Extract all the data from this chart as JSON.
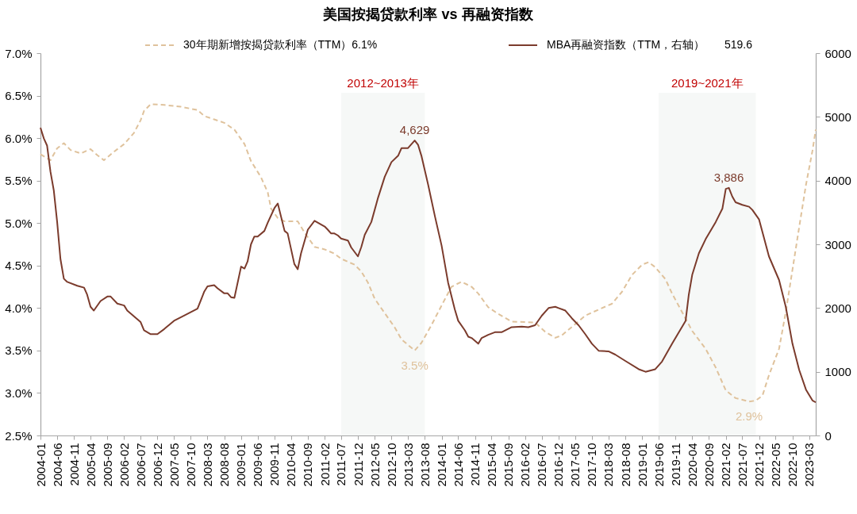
{
  "chart_data": {
    "type": "line",
    "title": "美国按揭贷款利率 vs 再融资指数",
    "xlim": [
      "2004-01",
      "2023-05"
    ],
    "xticks": [
      "2004-01",
      "2004-06",
      "2004-11",
      "2005-04",
      "2005-09",
      "2006-02",
      "2006-07",
      "2006-12",
      "2007-05",
      "2007-10",
      "2008-03",
      "2008-08",
      "2009-01",
      "2009-06",
      "2009-11",
      "2010-04",
      "2010-09",
      "2011-02",
      "2011-07",
      "2011-12",
      "2012-05",
      "2012-10",
      "2013-03",
      "2013-08",
      "2014-01",
      "2014-06",
      "2014-11",
      "2015-04",
      "2015-09",
      "2016-02",
      "2016-07",
      "2016-12",
      "2017-05",
      "2017-10",
      "2018-03",
      "2018-08",
      "2019-01",
      "2019-06",
      "2019-11",
      "2020-04",
      "2020-09",
      "2021-02",
      "2021-07",
      "2021-12",
      "2022-05",
      "2022-10",
      "2023-03"
    ],
    "ylim": [
      2.5,
      7.0
    ],
    "yticks": [
      {
        "value": 7.0,
        "label": "7.0%"
      },
      {
        "value": 6.5,
        "label": "6.5%"
      },
      {
        "value": 6.0,
        "label": "6.0%"
      },
      {
        "value": 5.5,
        "label": "5.5%"
      },
      {
        "value": 5.0,
        "label": "5.0%"
      },
      {
        "value": 4.5,
        "label": "4.5%"
      },
      {
        "value": 4.0,
        "label": "4.0%"
      },
      {
        "value": 3.5,
        "label": "3.5%"
      },
      {
        "value": 3.0,
        "label": "3.0%"
      },
      {
        "value": 2.5,
        "label": "2.5%"
      }
    ],
    "y2lim": [
      0,
      6000
    ],
    "y2ticks": [
      0,
      1000,
      2000,
      3000,
      4000,
      5000,
      6000
    ],
    "legend": "top",
    "bands": [
      {
        "axis": "x",
        "from": "2011-07",
        "to": "2013-08",
        "label": "2012~2013年",
        "color": "#f6f8f7"
      },
      {
        "axis": "x",
        "from": "2019-06",
        "to": "2021-11",
        "label": "2019~2021年",
        "color": "#f6f8f7"
      }
    ],
    "annotations": [
      "519.6"
    ],
    "series": [
      {
        "name": "30年期新增按揭贷款利率（TTM）6.1%",
        "color": "#dfc29c",
        "line_style": "dashed",
        "axis": "y",
        "x": [
          "2004-01",
          "2004-04",
          "2004-06",
          "2004-08",
          "2004-10",
          "2005-01",
          "2005-04",
          "2005-06",
          "2005-08",
          "2005-11",
          "2006-02",
          "2006-05",
          "2006-07",
          "2006-08",
          "2006-10",
          "2007-02",
          "2007-07",
          "2007-12",
          "2008-02",
          "2008-05",
          "2008-08",
          "2008-11",
          "2009-02",
          "2009-04",
          "2009-07",
          "2009-09",
          "2009-10",
          "2009-12",
          "2010-02",
          "2010-06",
          "2010-08",
          "2010-11",
          "2011-02",
          "2011-05",
          "2011-07",
          "2011-11",
          "2012-01",
          "2012-03",
          "2012-05",
          "2012-08",
          "2012-11",
          "2013-01",
          "2013-05",
          "2013-07",
          "2013-10",
          "2014-01",
          "2014-04",
          "2014-07",
          "2014-10",
          "2014-12",
          "2015-03",
          "2015-06",
          "2015-10",
          "2016-05",
          "2016-08",
          "2016-11",
          "2017-01",
          "2017-05",
          "2017-08",
          "2018-01",
          "2018-04",
          "2018-07",
          "2018-10",
          "2019-01",
          "2019-03",
          "2019-05",
          "2019-08",
          "2019-10",
          "2020-01",
          "2020-04",
          "2020-08",
          "2020-11",
          "2021-02",
          "2021-05",
          "2021-09",
          "2021-11",
          "2022-01",
          "2022-03",
          "2022-06",
          "2022-08",
          "2022-10",
          "2022-12",
          "2023-02",
          "2023-04",
          "2023-05"
        ],
        "values": [
          5.81,
          5.74,
          5.88,
          5.94,
          5.86,
          5.82,
          5.87,
          5.8,
          5.74,
          5.84,
          5.93,
          6.06,
          6.21,
          6.32,
          6.4,
          6.39,
          6.37,
          6.33,
          6.26,
          6.22,
          6.18,
          6.1,
          5.93,
          5.73,
          5.54,
          5.36,
          5.17,
          5.06,
          5.02,
          5.02,
          4.89,
          4.72,
          4.69,
          4.64,
          4.58,
          4.51,
          4.43,
          4.3,
          4.11,
          3.94,
          3.77,
          3.63,
          3.5,
          3.59,
          3.8,
          4.03,
          4.25,
          4.31,
          4.25,
          4.17,
          4.01,
          3.93,
          3.84,
          3.83,
          3.72,
          3.65,
          3.68,
          3.81,
          3.91,
          4.0,
          4.05,
          4.19,
          4.39,
          4.51,
          4.54,
          4.48,
          4.34,
          4.17,
          3.95,
          3.73,
          3.52,
          3.3,
          3.03,
          2.94,
          2.9,
          2.91,
          2.97,
          3.21,
          3.52,
          3.95,
          4.45,
          4.95,
          5.45,
          5.85,
          6.1
        ],
        "value_labels": [
          null,
          null,
          null,
          null,
          null,
          null,
          null,
          null,
          null,
          null,
          null,
          null,
          null,
          null,
          null,
          null,
          null,
          null,
          null,
          null,
          null,
          null,
          null,
          null,
          null,
          null,
          null,
          null,
          null,
          null,
          null,
          null,
          null,
          null,
          null,
          null,
          null,
          null,
          null,
          null,
          null,
          null,
          "3.5%",
          null,
          null,
          null,
          null,
          null,
          null,
          null,
          null,
          null,
          null,
          null,
          null,
          null,
          null,
          null,
          null,
          null,
          null,
          null,
          null,
          null,
          null,
          null,
          null,
          null,
          null,
          null,
          null,
          null,
          null,
          null,
          "2.9%",
          null,
          null,
          null,
          null,
          null,
          null,
          null,
          null,
          null,
          null
        ]
      },
      {
        "name": "MBA再融资指数（TTM，右轴）",
        "color": "#7b3b2c",
        "line_style": "solid",
        "axis": "y2",
        "x": [
          "2004-01",
          "2004-02",
          "2004-03",
          "2004-04",
          "2004-05",
          "2004-06",
          "2004-07",
          "2004-08",
          "2004-09",
          "2004-12",
          "2005-02",
          "2005-03",
          "2005-04",
          "2005-05",
          "2005-07",
          "2005-09",
          "2005-10",
          "2005-12",
          "2006-02",
          "2006-03",
          "2006-05",
          "2006-07",
          "2006-08",
          "2006-10",
          "2006-12",
          "2007-02",
          "2007-05",
          "2007-08",
          "2007-12",
          "2008-02",
          "2008-03",
          "2008-05",
          "2008-06",
          "2008-08",
          "2008-09",
          "2008-10",
          "2008-11",
          "2009-01",
          "2009-02",
          "2009-03",
          "2009-04",
          "2009-05",
          "2009-06",
          "2009-08",
          "2009-09",
          "2009-11",
          "2009-12",
          "2010-02",
          "2010-03",
          "2010-05",
          "2010-06",
          "2010-07",
          "2010-09",
          "2010-11",
          "2011-02",
          "2011-03",
          "2011-04",
          "2011-05",
          "2011-06",
          "2011-07",
          "2011-09",
          "2011-10",
          "2011-12",
          "2012-01",
          "2012-02",
          "2012-04",
          "2012-06",
          "2012-08",
          "2012-10",
          "2012-12",
          "2013-01",
          "2013-03",
          "2013-05",
          "2013-06",
          "2013-07",
          "2013-09",
          "2013-11",
          "2014-01",
          "2014-03",
          "2014-05",
          "2014-06",
          "2014-08",
          "2014-09",
          "2014-10",
          "2014-12",
          "2015-01",
          "2015-03",
          "2015-05",
          "2015-07",
          "2015-10",
          "2016-01",
          "2016-03",
          "2016-05",
          "2016-07",
          "2016-09",
          "2016-11",
          "2016-12",
          "2017-02",
          "2017-04",
          "2017-06",
          "2017-08",
          "2017-10",
          "2017-12",
          "2018-03",
          "2018-05",
          "2018-08",
          "2018-12",
          "2019-02",
          "2019-05",
          "2019-07",
          "2019-10",
          "2020-02",
          "2020-03",
          "2020-04",
          "2020-06",
          "2020-08",
          "2020-09",
          "2020-11",
          "2021-01",
          "2021-02",
          "2021-03",
          "2021-04",
          "2021-05",
          "2021-07",
          "2021-09",
          "2021-10",
          "2021-12",
          "2022-01",
          "2022-03",
          "2022-06",
          "2022-08",
          "2022-10",
          "2022-12",
          "2023-02",
          "2023-04",
          "2023-05"
        ],
        "values": [
          4830,
          4660,
          4550,
          4140,
          3850,
          3350,
          2770,
          2460,
          2410,
          2350,
          2320,
          2210,
          2020,
          1960,
          2110,
          2180,
          2180,
          2070,
          2040,
          1960,
          1870,
          1780,
          1650,
          1590,
          1590,
          1670,
          1800,
          1880,
          1990,
          2260,
          2340,
          2360,
          2310,
          2230,
          2230,
          2170,
          2160,
          2650,
          2620,
          2730,
          3000,
          3120,
          3120,
          3210,
          3340,
          3570,
          3640,
          3210,
          3170,
          2690,
          2610,
          2860,
          3230,
          3370,
          3280,
          3230,
          3170,
          3170,
          3140,
          3090,
          3060,
          2950,
          2810,
          2960,
          3150,
          3350,
          3730,
          4060,
          4290,
          4390,
          4510,
          4510,
          4629,
          4560,
          4390,
          3930,
          3440,
          2980,
          2400,
          1980,
          1800,
          1650,
          1550,
          1530,
          1440,
          1530,
          1580,
          1620,
          1620,
          1700,
          1710,
          1700,
          1730,
          1880,
          2000,
          2020,
          2000,
          1960,
          1840,
          1730,
          1590,
          1440,
          1330,
          1320,
          1270,
          1170,
          1040,
          1000,
          1040,
          1160,
          1440,
          1800,
          2210,
          2520,
          2860,
          3080,
          3170,
          3350,
          3560,
          3870,
          3886,
          3750,
          3660,
          3620,
          3590,
          3540,
          3390,
          3190,
          2810,
          2440,
          2020,
          1440,
          1030,
          720,
          550,
          519.6
        ],
        "value_labels": [
          null,
          null,
          null,
          null,
          null,
          null,
          null,
          null,
          null,
          null,
          null,
          null,
          null,
          null,
          null,
          null,
          null,
          null,
          null,
          null,
          null,
          null,
          null,
          null,
          null,
          null,
          null,
          null,
          null,
          null,
          null,
          null,
          null,
          null,
          null,
          null,
          null,
          null,
          null,
          null,
          null,
          null,
          null,
          null,
          null,
          null,
          null,
          null,
          null,
          null,
          null,
          null,
          null,
          null,
          null,
          null,
          null,
          null,
          null,
          null,
          null,
          null,
          null,
          null,
          null,
          null,
          null,
          null,
          null,
          null,
          null,
          null,
          "4,629",
          null,
          null,
          null,
          null,
          null,
          null,
          null,
          null,
          null,
          null,
          null,
          null,
          null,
          null,
          null,
          null,
          null,
          null,
          null,
          null,
          null,
          null,
          null,
          null,
          null,
          null,
          null,
          null,
          null,
          null,
          null,
          null,
          null,
          null,
          null,
          null,
          null,
          null,
          null,
          null,
          null,
          null,
          null,
          null,
          null,
          null,
          null,
          "3,886",
          null,
          null,
          null,
          null,
          null,
          null,
          null,
          null,
          null,
          null,
          null,
          null,
          null,
          null,
          null
        ]
      }
    ]
  }
}
